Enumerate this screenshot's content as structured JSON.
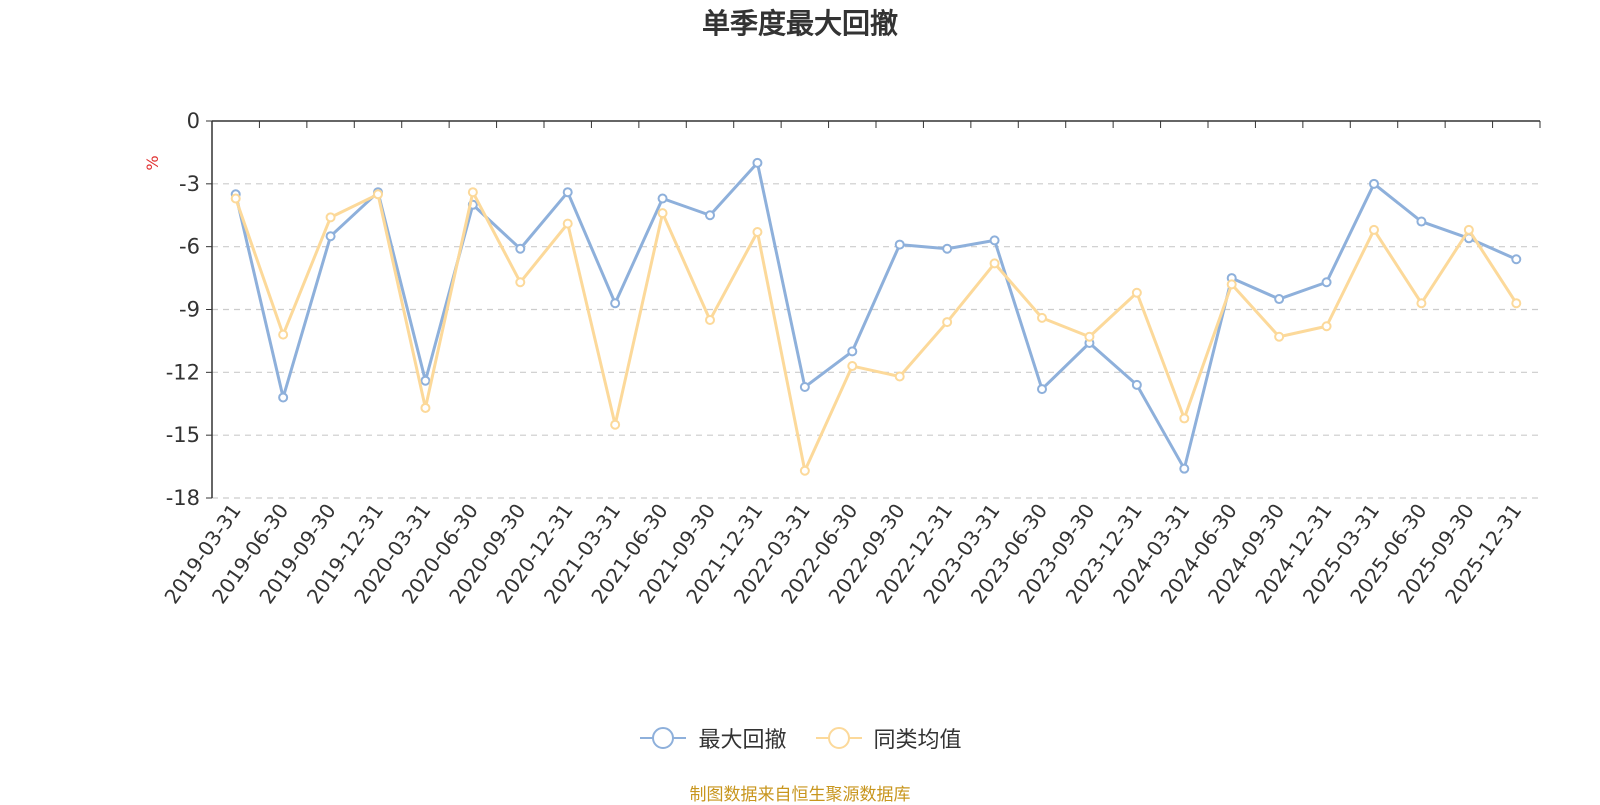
{
  "chart_data": {
    "type": "line",
    "title": "单季度最大回撤",
    "ylabel": "%",
    "ylim": [
      -18,
      0
    ],
    "yticks": [
      0,
      -3,
      -6,
      -9,
      -12,
      -15,
      -18
    ],
    "grid": true,
    "legend_position": "bottom",
    "categories": [
      "2019-03-31",
      "2019-06-30",
      "2019-09-30",
      "2019-12-31",
      "2020-03-31",
      "2020-06-30",
      "2020-09-30",
      "2020-12-31",
      "2021-03-31",
      "2021-06-30",
      "2021-09-30",
      "2021-12-31",
      "2022-03-31",
      "2022-06-30",
      "2022-09-30",
      "2022-12-31",
      "2023-03-31",
      "2023-06-30",
      "2023-09-30",
      "2023-12-31",
      "2024-03-31",
      "2024-06-30",
      "2024-09-30",
      "2024-12-31",
      "2025-03-31",
      "2025-06-30",
      "2025-09-30",
      "2025-12-31"
    ],
    "series": [
      {
        "name": "最大回撤",
        "color": "#8eb0db",
        "values": [
          -3.5,
          -13.2,
          -5.5,
          -3.4,
          -12.4,
          -4.0,
          -6.1,
          -3.4,
          -8.7,
          -3.7,
          -4.5,
          -2.0,
          -12.7,
          -11.0,
          -5.9,
          -6.1,
          -5.7,
          -12.8,
          -10.6,
          -12.6,
          -16.6,
          -7.5,
          -8.5,
          -7.7,
          -3.0,
          -4.8,
          -5.6,
          -6.6
        ]
      },
      {
        "name": "同类均值",
        "color": "#fcd99a",
        "values": [
          -3.7,
          -10.2,
          -4.6,
          -3.5,
          -13.7,
          -3.4,
          -7.7,
          -4.9,
          -14.5,
          -4.4,
          -9.5,
          -5.3,
          -16.7,
          -11.7,
          -12.2,
          -9.6,
          -6.8,
          -9.4,
          -10.3,
          -8.2,
          -14.2,
          -7.8,
          -10.3,
          -9.8,
          -5.2,
          -8.7,
          -5.2,
          -8.7
        ]
      }
    ]
  },
  "footer": {
    "source": "制图数据来自恒生聚源数据库"
  }
}
